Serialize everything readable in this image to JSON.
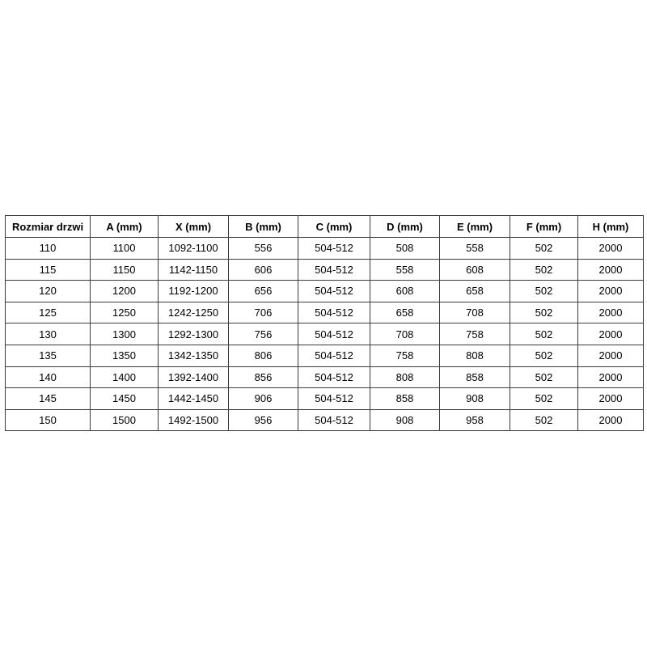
{
  "page": {
    "background": "#ffffff"
  },
  "colors": {
    "table_border": "#3c3c3c",
    "header_text": "#000000",
    "cell_text": "#000000",
    "cell_background": "#ffffff"
  },
  "chart_data": {
    "type": "table",
    "headers": [
      "Rozmiar drzwi",
      "A (mm)",
      "X (mm)",
      "B (mm)",
      "C (mm)",
      "D (mm)",
      "E (mm)",
      "F (mm)",
      "H (mm)"
    ],
    "rows": [
      [
        "110",
        "1100",
        "1092-1100",
        "556",
        "504-512",
        "508",
        "558",
        "502",
        "2000"
      ],
      [
        "115",
        "1150",
        "1142-1150",
        "606",
        "504-512",
        "558",
        "608",
        "502",
        "2000"
      ],
      [
        "120",
        "1200",
        "1192-1200",
        "656",
        "504-512",
        "608",
        "658",
        "502",
        "2000"
      ],
      [
        "125",
        "1250",
        "1242-1250",
        "706",
        "504-512",
        "658",
        "708",
        "502",
        "2000"
      ],
      [
        "130",
        "1300",
        "1292-1300",
        "756",
        "504-512",
        "708",
        "758",
        "502",
        "2000"
      ],
      [
        "135",
        "1350",
        "1342-1350",
        "806",
        "504-512",
        "758",
        "808",
        "502",
        "2000"
      ],
      [
        "140",
        "1400",
        "1392-1400",
        "856",
        "504-512",
        "808",
        "858",
        "502",
        "2000"
      ],
      [
        "145",
        "1450",
        "1442-1450",
        "906",
        "504-512",
        "858",
        "908",
        "502",
        "2000"
      ],
      [
        "150",
        "1500",
        "1492-1500",
        "956",
        "504-512",
        "908",
        "958",
        "502",
        "2000"
      ]
    ]
  }
}
